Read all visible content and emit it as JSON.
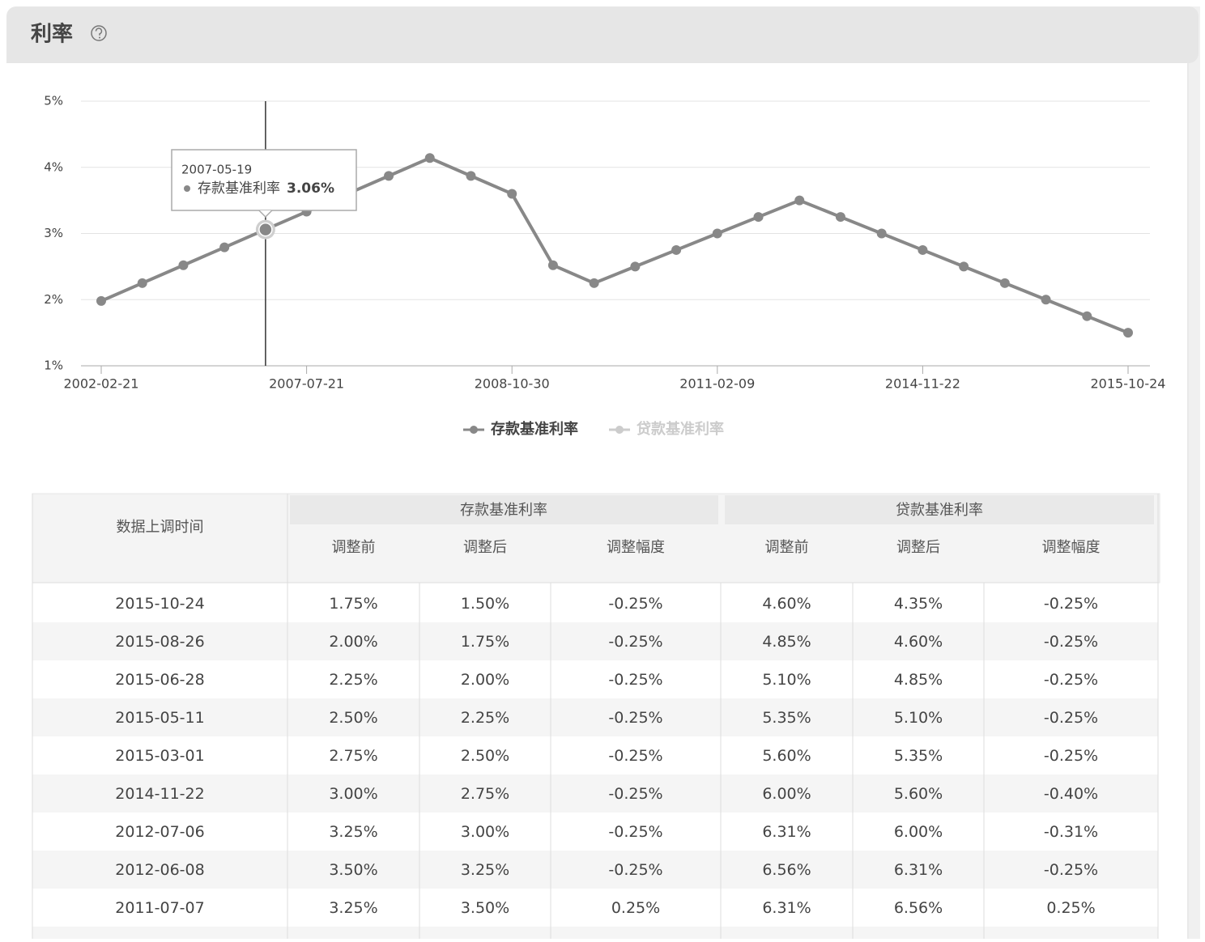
{
  "title": "利率",
  "chart_data": {
    "type": "line",
    "categories": [
      "2002-02-21",
      null,
      null,
      null,
      null,
      "2007-07-21",
      null,
      null,
      null,
      null,
      "2008-10-30",
      null,
      null,
      null,
      null,
      "2011-02-09",
      null,
      null,
      null,
      null,
      "2014-11-22",
      null,
      null,
      null,
      null,
      "2015-10-24"
    ],
    "series": [
      {
        "name": "存款基准利率",
        "color": "#888888",
        "values": [
          1.98,
          2.25,
          2.52,
          2.79,
          3.06,
          3.33,
          3.6,
          3.87,
          4.14,
          3.87,
          3.6,
          2.52,
          2.25,
          2.5,
          2.75,
          3.0,
          3.25,
          3.5,
          3.25,
          3.0,
          2.75,
          2.5,
          2.25,
          2.0,
          1.75,
          1.5
        ],
        "value_labels": [
          null,
          null,
          null,
          null,
          "3.06%",
          null,
          null,
          null,
          null,
          null,
          null,
          null,
          null,
          null,
          null,
          null,
          null,
          null,
          null,
          null,
          null,
          null,
          null,
          null,
          null,
          null
        ]
      },
      {
        "name": "贷款基准利率",
        "color": "#cccccc",
        "hidden": true
      }
    ],
    "tooltip": {
      "date": "2007-05-19"
    },
    "ylim": [
      1,
      5
    ],
    "yticks": [
      {
        "value": 1,
        "label": "1%"
      },
      {
        "value": 2,
        "label": "2%"
      },
      {
        "value": 3,
        "label": "3%"
      },
      {
        "value": 4,
        "label": "4%"
      },
      {
        "value": 5,
        "label": "5%"
      }
    ],
    "grid": true
  },
  "table": {
    "first_header": "数据上调时间",
    "group_headers": [
      "存款基准利率",
      "贷款基准利率"
    ],
    "sub_headers": [
      "调整前",
      "调整后",
      "调整幅度",
      "调整前",
      "调整后",
      "调整幅度"
    ],
    "rows": [
      [
        "2015-10-24",
        "1.75%",
        "1.50%",
        "-0.25%",
        "4.60%",
        "4.35%",
        "-0.25%"
      ],
      [
        "2015-08-26",
        "2.00%",
        "1.75%",
        "-0.25%",
        "4.85%",
        "4.60%",
        "-0.25%"
      ],
      [
        "2015-06-28",
        "2.25%",
        "2.00%",
        "-0.25%",
        "5.10%",
        "4.85%",
        "-0.25%"
      ],
      [
        "2015-05-11",
        "2.50%",
        "2.25%",
        "-0.25%",
        "5.35%",
        "5.10%",
        "-0.25%"
      ],
      [
        "2015-03-01",
        "2.75%",
        "2.50%",
        "-0.25%",
        "5.60%",
        "5.35%",
        "-0.25%"
      ],
      [
        "2014-11-22",
        "3.00%",
        "2.75%",
        "-0.25%",
        "6.00%",
        "5.60%",
        "-0.40%"
      ],
      [
        "2012-07-06",
        "3.25%",
        "3.00%",
        "-0.25%",
        "6.31%",
        "6.00%",
        "-0.31%"
      ],
      [
        "2012-06-08",
        "3.50%",
        "3.25%",
        "-0.25%",
        "6.56%",
        "6.31%",
        "-0.25%"
      ],
      [
        "2011-07-07",
        "3.25%",
        "3.50%",
        "0.25%",
        "6.31%",
        "6.56%",
        "0.25%"
      ]
    ]
  }
}
